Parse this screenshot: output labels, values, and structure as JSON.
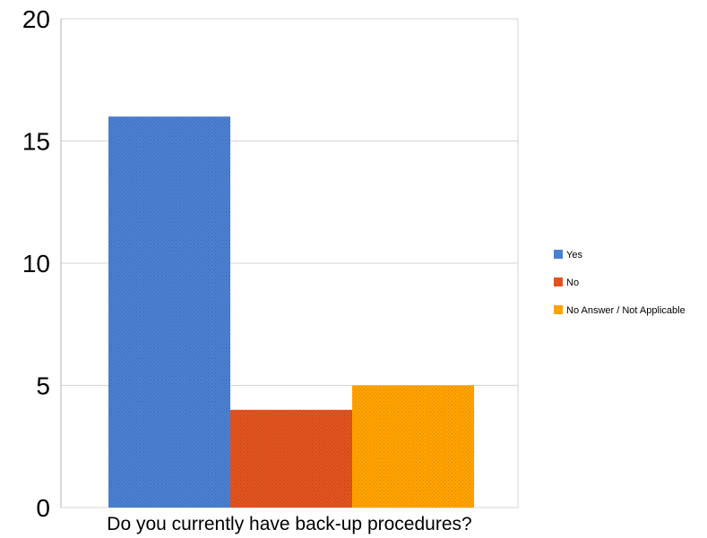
{
  "chart_data": {
    "type": "bar",
    "xlabel": "Do you currently have back-up procedures?",
    "ylabel": "",
    "ylim": [
      0,
      20
    ],
    "yticks": [
      0,
      5,
      10,
      15,
      20
    ],
    "grid": true,
    "legend_position": "right",
    "series": [
      {
        "name": "Yes",
        "values": [
          16
        ],
        "color": "#4a7fd0"
      },
      {
        "name": "No",
        "values": [
          4
        ],
        "color": "#e0531f"
      },
      {
        "name": "No Answer / Not Applicable",
        "values": [
          5
        ],
        "color": "#ffa200"
      }
    ]
  }
}
